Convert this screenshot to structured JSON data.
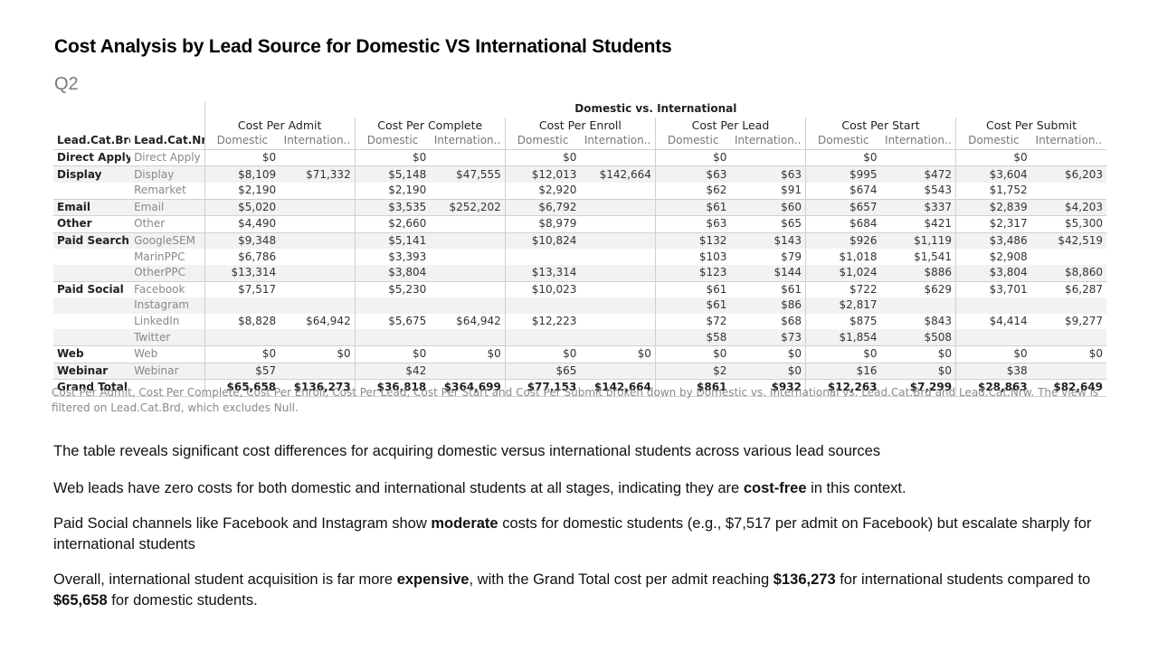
{
  "title": "Cost Analysis by Lead Source for Domestic VS International Students",
  "subtitle": "Q2",
  "table": {
    "super_header": "Domestic vs. International",
    "row_headers": [
      "Lead.Cat.Brd",
      "Lead.Cat.Nr.."
    ],
    "groups": [
      "Cost Per Admit",
      "Cost Per Complete",
      "Cost Per Enroll",
      "Cost Per Lead",
      "Cost Per Start",
      "Cost Per Submit"
    ],
    "sub_headers": [
      "Domestic",
      "Internation.."
    ],
    "rows": [
      {
        "brd": "Direct Apply",
        "nrw": "Direct Apply",
        "cells": [
          "$0",
          "",
          "$0",
          "",
          "$0",
          "",
          "$0",
          "",
          "$0",
          "",
          "$0",
          ""
        ]
      },
      {
        "brd": "Display",
        "nrw": "Display",
        "cells": [
          "$8,109",
          "$71,332",
          "$5,148",
          "$47,555",
          "$12,013",
          "$142,664",
          "$63",
          "$63",
          "$995",
          "$472",
          "$3,604",
          "$6,203"
        ]
      },
      {
        "brd": "",
        "nrw": "Remarket",
        "cells": [
          "$2,190",
          "",
          "$2,190",
          "",
          "$2,920",
          "",
          "$62",
          "$91",
          "$674",
          "$543",
          "$1,752",
          ""
        ]
      },
      {
        "brd": "Email",
        "nrw": "Email",
        "cells": [
          "$5,020",
          "",
          "$3,535",
          "$252,202",
          "$6,792",
          "",
          "$61",
          "$60",
          "$657",
          "$337",
          "$2,839",
          "$4,203"
        ]
      },
      {
        "brd": "Other",
        "nrw": "Other",
        "cells": [
          "$4,490",
          "",
          "$2,660",
          "",
          "$8,979",
          "",
          "$63",
          "$65",
          "$684",
          "$421",
          "$2,317",
          "$5,300"
        ]
      },
      {
        "brd": "Paid Search",
        "nrw": "GoogleSEM",
        "cells": [
          "$9,348",
          "",
          "$5,141",
          "",
          "$10,824",
          "",
          "$132",
          "$143",
          "$926",
          "$1,119",
          "$3,486",
          "$42,519"
        ]
      },
      {
        "brd": "",
        "nrw": "MarinPPC",
        "cells": [
          "$6,786",
          "",
          "$3,393",
          "",
          "",
          "",
          "$103",
          "$79",
          "$1,018",
          "$1,541",
          "$2,908",
          ""
        ]
      },
      {
        "brd": "",
        "nrw": "OtherPPC",
        "cells": [
          "$13,314",
          "",
          "$3,804",
          "",
          "$13,314",
          "",
          "$123",
          "$144",
          "$1,024",
          "$886",
          "$3,804",
          "$8,860"
        ]
      },
      {
        "brd": "Paid Social",
        "nrw": "Facebook",
        "cells": [
          "$7,517",
          "",
          "$5,230",
          "",
          "$10,023",
          "",
          "$61",
          "$61",
          "$722",
          "$629",
          "$3,701",
          "$6,287"
        ]
      },
      {
        "brd": "",
        "nrw": "Instagram",
        "cells": [
          "",
          "",
          "",
          "",
          "",
          "",
          "$61",
          "$86",
          "$2,817",
          "",
          "",
          ""
        ]
      },
      {
        "brd": "",
        "nrw": "LinkedIn",
        "cells": [
          "$8,828",
          "$64,942",
          "$5,675",
          "$64,942",
          "$12,223",
          "",
          "$72",
          "$68",
          "$875",
          "$843",
          "$4,414",
          "$9,277"
        ]
      },
      {
        "brd": "",
        "nrw": "Twitter",
        "cells": [
          "",
          "",
          "",
          "",
          "",
          "",
          "$58",
          "$73",
          "$1,854",
          "$508",
          "",
          ""
        ]
      },
      {
        "brd": "Web",
        "nrw": "Web",
        "cells": [
          "$0",
          "$0",
          "$0",
          "$0",
          "$0",
          "$0",
          "$0",
          "$0",
          "$0",
          "$0",
          "$0",
          "$0"
        ]
      },
      {
        "brd": "Webinar",
        "nrw": "Webinar",
        "cells": [
          "$57",
          "",
          "$42",
          "",
          "$65",
          "",
          "$2",
          "$0",
          "$16",
          "$0",
          "$38",
          ""
        ]
      },
      {
        "brd": "Grand Total",
        "nrw": "",
        "cells": [
          "$65,658",
          "$136,273",
          "$36,818",
          "$364,699",
          "$77,153",
          "$142,664",
          "$861",
          "$932",
          "$12,263",
          "$7,299",
          "$28,863",
          "$82,649"
        ]
      }
    ]
  },
  "caption": "Cost Per Admit, Cost Per Complete, Cost Per Enroll, Cost Per Lead, Cost Per Start and Cost Per Submit broken down by Domestic vs. International vs. Lead.Cat.Brd and Lead.Cat.Nrw. The view is filtered on Lead.Cat.Brd, which excludes Null.",
  "paragraphs": {
    "p1": "The table reveals significant cost differences for acquiring domestic versus international students across various lead sources",
    "p2": {
      "a": "Web leads have zero costs for both domestic and international students at all stages, indicating they are ",
      "b": "cost-free",
      "c": " in this context."
    },
    "p3": {
      "a": "Paid Social channels like Facebook and Instagram show ",
      "b": "moderate",
      "c": " costs for domestic students (e.g., $7,517 per admit on Facebook) but escalate sharply for international students"
    },
    "p4": {
      "a": "Overall, international student acquisition is far more ",
      "b": "expensive",
      "c": ", with the Grand Total cost per admit reaching ",
      "d": "$136,273",
      "e": " for international students compared to ",
      "f": "$65,658",
      "g": " for domestic students."
    }
  }
}
